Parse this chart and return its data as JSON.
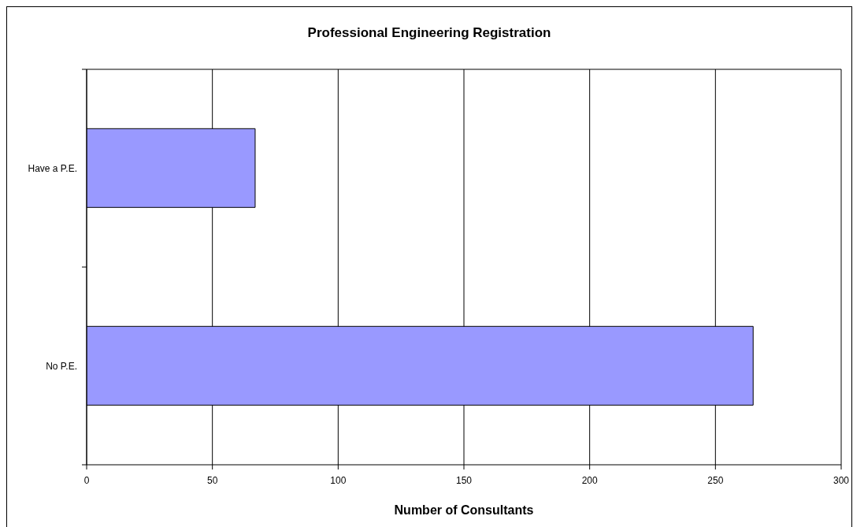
{
  "chart_data": {
    "type": "bar",
    "orientation": "horizontal",
    "title": "Professional Engineering Registration",
    "xlabel": "Number of Consultants",
    "categories": [
      "Have a P.E.",
      "No P.E."
    ],
    "values": [
      67,
      265
    ],
    "color": "#9999ff",
    "xlim": [
      0,
      300
    ],
    "xticks": [
      0,
      50,
      100,
      150,
      200,
      250,
      300
    ],
    "grid": "x"
  }
}
